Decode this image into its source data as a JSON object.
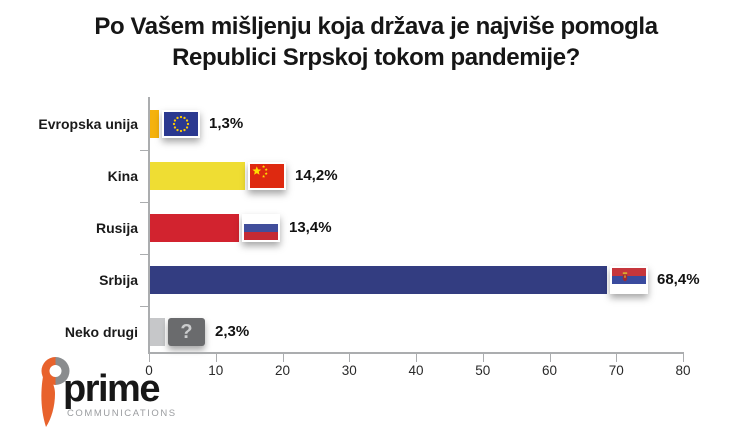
{
  "title": {
    "line1": "Po Vašem mišljenju koja država je najviše pomogla",
    "line2": "Republici Srpskoj tokom pandemije?"
  },
  "chart_data": {
    "type": "bar",
    "orientation": "horizontal",
    "title": "Po Vašem mišljenju koja država je najviše pomogla Republici Srpskoj tokom pandemije?",
    "categories": [
      "Evropska unija",
      "Kina",
      "Rusija",
      "Srbija",
      "Neko drugi"
    ],
    "values": [
      1.3,
      14.2,
      13.4,
      68.4,
      2.3
    ],
    "value_labels": [
      "1,3%",
      "14,2%",
      "13,4%",
      "68,4%",
      "2,3%"
    ],
    "bar_colors": [
      "#F5B20D",
      "#EFDD33",
      "#D2232F",
      "#333D81",
      "#C6C7C9"
    ],
    "end_icons": [
      "eu-flag",
      "china-flag",
      "russia-flag",
      "serbia-flag",
      "question"
    ],
    "xlim": [
      0,
      80
    ],
    "x_ticks": [
      0,
      10,
      20,
      30,
      40,
      50,
      60,
      70,
      80
    ],
    "grid": false,
    "legend": "none"
  },
  "flag_colors": {
    "eu_blue": "#2B3990",
    "eu_star": "#FFCC00",
    "china_red": "#DE2910",
    "china_star": "#FFDE00",
    "russia_white": "#FFFFFF",
    "russia_blue": "#414E9B",
    "russia_red": "#C52A33",
    "serbia_red": "#C6363C",
    "serbia_blue": "#3A4B9E",
    "serbia_white": "#FFFFFF",
    "serbia_crest_gold": "#D9A930",
    "serbia_crest_red": "#9E2B33"
  },
  "question_icon": "?",
  "axis_color": "#ABADAF",
  "logo": {
    "name": "prime",
    "subtitle": "COMMUNICATIONS",
    "accent_orange": "#E8622C",
    "accent_gray": "#8A8C8E"
  }
}
